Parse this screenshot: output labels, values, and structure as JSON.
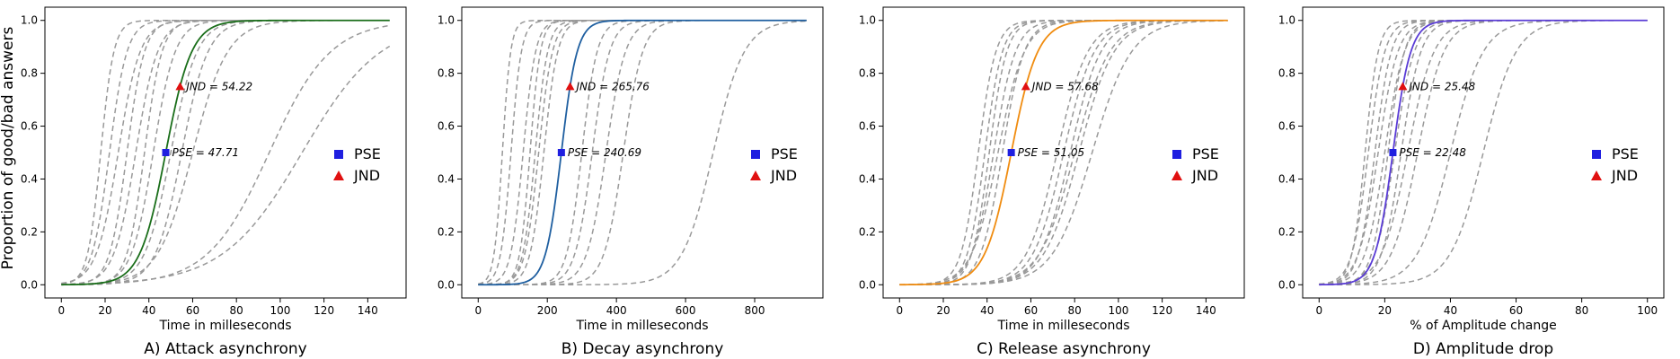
{
  "figure": {
    "ylabel": "Proportion of good/bad answers"
  },
  "legend": {
    "pse_label": "PSE",
    "jnd_label": "JND",
    "placement": "right-center"
  },
  "colors": {
    "individual": "#999999",
    "pse_marker": "#1f1fe0",
    "jnd_marker": "#e01010",
    "axis": "#000000"
  },
  "chart_data": [
    {
      "type": "line",
      "caption": "A) Attack asynchrony",
      "xlabel": "Time in milleseconds",
      "ylabel": "Proportion of good/bad answers",
      "xlim": [
        -7.5,
        157.5
      ],
      "ylim": [
        -0.05,
        1.05
      ],
      "xticks": [
        0,
        20,
        40,
        60,
        80,
        100,
        120,
        140
      ],
      "yticks": [
        0.0,
        0.2,
        0.4,
        0.6,
        0.8,
        1.0
      ],
      "grid": false,
      "x_range": [
        0,
        150
      ],
      "mean_color": "#1a6e1a",
      "mean_curve": {
        "pse": 47.71,
        "jnd": 54.22
      },
      "pse": {
        "x": 47.71,
        "y": 0.5,
        "label": "PSE = 47.71"
      },
      "jnd": {
        "x": 54.22,
        "y": 0.75,
        "label": "JND = 54.22"
      },
      "individual_curves": [
        {
          "pse": 18,
          "spread": 3
        },
        {
          "pse": 22,
          "spread": 4
        },
        {
          "pse": 26,
          "spread": 5
        },
        {
          "pse": 30,
          "spread": 4
        },
        {
          "pse": 34,
          "spread": 5
        },
        {
          "pse": 38,
          "spread": 4
        },
        {
          "pse": 42,
          "spread": 5
        },
        {
          "pse": 50,
          "spread": 6
        },
        {
          "pse": 55,
          "spread": 6
        },
        {
          "pse": 60,
          "spread": 8
        },
        {
          "pse": 95,
          "spread": 14
        },
        {
          "pse": 110,
          "spread": 18
        }
      ]
    },
    {
      "type": "line",
      "caption": "B) Decay asynchrony",
      "xlabel": "Time in milleseconds",
      "ylabel": "",
      "xlim": [
        -47.5,
        997.5
      ],
      "ylim": [
        -0.05,
        1.05
      ],
      "xticks": [
        0,
        200,
        400,
        600,
        800
      ],
      "yticks": [
        0.0,
        0.2,
        0.4,
        0.6,
        0.8,
        1.0
      ],
      "grid": false,
      "x_range": [
        0,
        950
      ],
      "mean_color": "#1f5fa0",
      "mean_curve": {
        "pse": 240.69,
        "jnd": 265.76
      },
      "pse": {
        "x": 240.69,
        "y": 0.5,
        "label": "PSE = 240.69"
      },
      "jnd": {
        "x": 265.76,
        "y": 0.75,
        "label": "JND = 265.76"
      },
      "individual_curves": [
        {
          "pse": 70,
          "spread": 12
        },
        {
          "pse": 95,
          "spread": 15
        },
        {
          "pse": 130,
          "spread": 18
        },
        {
          "pse": 150,
          "spread": 15
        },
        {
          "pse": 165,
          "spread": 18
        },
        {
          "pse": 175,
          "spread": 20
        },
        {
          "pse": 190,
          "spread": 20
        },
        {
          "pse": 300,
          "spread": 22
        },
        {
          "pse": 330,
          "spread": 25
        },
        {
          "pse": 370,
          "spread": 28
        },
        {
          "pse": 420,
          "spread": 28
        },
        {
          "pse": 680,
          "spread": 45
        }
      ]
    },
    {
      "type": "line",
      "caption": "C) Release asynchrony",
      "xlabel": "Time in milleseconds",
      "ylabel": "",
      "xlim": [
        -7.5,
        157.5
      ],
      "ylim": [
        -0.05,
        1.05
      ],
      "xticks": [
        0,
        20,
        40,
        60,
        80,
        100,
        120,
        140
      ],
      "yticks": [
        0.0,
        0.2,
        0.4,
        0.6,
        0.8,
        1.0
      ],
      "grid": false,
      "x_range": [
        0,
        150
      ],
      "mean_color": "#f08c10",
      "mean_curve": {
        "pse": 51.05,
        "jnd": 57.68
      },
      "pse": {
        "x": 51.05,
        "y": 0.5,
        "label": "PSE = 51.05"
      },
      "jnd": {
        "x": 57.68,
        "y": 0.75,
        "label": "JND = 57.68"
      },
      "individual_curves": [
        {
          "pse": 36,
          "spread": 4
        },
        {
          "pse": 39,
          "spread": 4
        },
        {
          "pse": 41,
          "spread": 4
        },
        {
          "pse": 43,
          "spread": 5
        },
        {
          "pse": 45,
          "spread": 6
        },
        {
          "pse": 47,
          "spread": 5
        },
        {
          "pse": 72,
          "spread": 7
        },
        {
          "pse": 75,
          "spread": 7
        },
        {
          "pse": 78,
          "spread": 7
        },
        {
          "pse": 80,
          "spread": 8
        },
        {
          "pse": 82,
          "spread": 8
        },
        {
          "pse": 88,
          "spread": 9
        }
      ]
    },
    {
      "type": "line",
      "caption": "D) Amplitude drop",
      "xlabel": "% of Amplitude change",
      "ylabel": "",
      "xlim": [
        -5,
        105
      ],
      "ylim": [
        -0.05,
        1.05
      ],
      "xticks": [
        0,
        20,
        40,
        60,
        80,
        100
      ],
      "yticks": [
        0.0,
        0.2,
        0.4,
        0.6,
        0.8,
        1.0
      ],
      "grid": false,
      "x_range": [
        0,
        100
      ],
      "mean_color": "#5a3cd6",
      "mean_curve": {
        "pse": 22.48,
        "jnd": 25.48
      },
      "pse": {
        "x": 22.48,
        "y": 0.5,
        "label": "PSE = 22.48"
      },
      "jnd": {
        "x": 25.48,
        "y": 0.75,
        "label": "JND = 25.48"
      },
      "individual_curves": [
        {
          "pse": 14,
          "spread": 2
        },
        {
          "pse": 15,
          "spread": 2.5
        },
        {
          "pse": 17,
          "spread": 2.5
        },
        {
          "pse": 18,
          "spread": 3
        },
        {
          "pse": 20,
          "spread": 3
        },
        {
          "pse": 21,
          "spread": 2.5
        },
        {
          "pse": 23,
          "spread": 3
        },
        {
          "pse": 25,
          "spread": 3
        },
        {
          "pse": 27,
          "spread": 4
        },
        {
          "pse": 30,
          "spread": 4
        },
        {
          "pse": 40,
          "spread": 5
        },
        {
          "pse": 50,
          "spread": 5
        }
      ]
    }
  ]
}
